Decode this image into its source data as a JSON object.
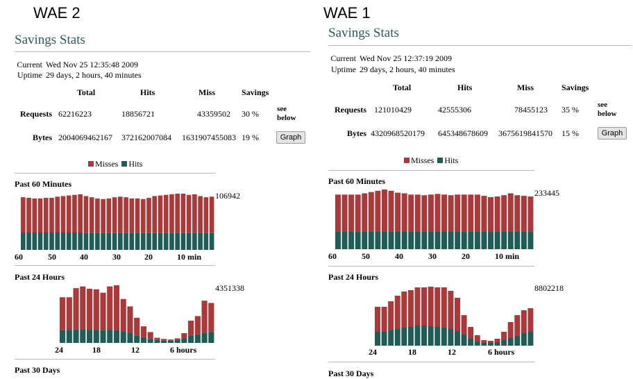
{
  "colors": {
    "misses": "#a83a3c",
    "hits": "#1e5c55",
    "title": "#2a5a5a"
  },
  "columns": [
    {
      "label": "WAE 2",
      "title": "Savings Stats",
      "current_label": "Current",
      "current_value": "Wed Nov 25 12:35:48 2009",
      "uptime_label": "Uptime",
      "uptime_value": "29 days, 2 hours, 40 minutes",
      "headers": [
        "Total",
        "Hits",
        "Miss",
        "Savings"
      ],
      "requests": {
        "label": "Requests",
        "total": "62216223",
        "hits": "18856721",
        "miss": "43359502",
        "savings": "30 %"
      },
      "bytes": {
        "label": "Bytes",
        "total": "2004069462167",
        "hits": "372162007084",
        "miss": "1631907455083",
        "savings": "19 %"
      },
      "see_below_1": "see",
      "see_below_2": "below",
      "graph_button": "Graph",
      "legend_misses": "Misses",
      "legend_hits": "Hits",
      "minutes": {
        "title": "Past 60 Minutes",
        "max_label": "106942",
        "ticks": [
          "60",
          "50",
          "40",
          "30",
          "20",
          "10 min"
        ],
        "misses": [
          59,
          58,
          57,
          57,
          58,
          58,
          60,
          61,
          62,
          63,
          64,
          62,
          60,
          58,
          57,
          58,
          60,
          61,
          60,
          58,
          58,
          57,
          59,
          62,
          63,
          64,
          65,
          66,
          66,
          64,
          65,
          62,
          60,
          61
        ],
        "hits": [
          29,
          29,
          29,
          29,
          29,
          29,
          29,
          29,
          29,
          29,
          29,
          28,
          28,
          28,
          28,
          28,
          28,
          28,
          28,
          28,
          28,
          28,
          28,
          28,
          28,
          28,
          28,
          28,
          28,
          28,
          28,
          28,
          28,
          28
        ]
      },
      "hours": {
        "title": "Past 24 Hours",
        "max_label": "4351338",
        "ticks": [
          "24",
          "18",
          "12",
          "6 hours"
        ],
        "misses": [
          58,
          57,
          72,
          75,
          72,
          71,
          66,
          76,
          79,
          57,
          47,
          31,
          19,
          12,
          4,
          3,
          2,
          3,
          9,
          26,
          32,
          56,
          51
        ],
        "hits": [
          22,
          23,
          24,
          24,
          23,
          23,
          22,
          23,
          22,
          20,
          17,
          13,
          10,
          7,
          5,
          4,
          4,
          5,
          8,
          13,
          15,
          18,
          19
        ]
      },
      "days": {
        "title": "Past 30 Days"
      }
    },
    {
      "label": "WAE 1",
      "title": "Savings Stats",
      "current_label": "Current",
      "current_value": "Wed Nov 25 12:37:19 2009",
      "uptime_label": "Uptime",
      "uptime_value": "29 days, 2 hours, 40 minutes",
      "headers": [
        "Total",
        "Hits",
        "Miss",
        "Savings"
      ],
      "requests": {
        "label": "Requests",
        "total": "121010429",
        "hits": "42555306",
        "miss": "78455123",
        "savings": "35 %"
      },
      "bytes": {
        "label": "Bytes",
        "total": "4320968520179",
        "hits": "645348678609",
        "miss": "3675619841570",
        "savings": "15 %"
      },
      "see_below_1": "see",
      "see_below_2": "below",
      "graph_button": "Graph",
      "legend_misses": "Misses",
      "legend_hits": "Hits",
      "minutes": {
        "title": "Past 60 Minutes",
        "max_label": "233445",
        "ticks": [
          "60",
          "50",
          "40",
          "30",
          "20",
          "10 min"
        ],
        "misses": [
          58,
          58,
          58,
          58,
          60,
          62,
          64,
          66,
          64,
          61,
          60,
          58,
          58,
          57,
          58,
          59,
          58,
          57,
          58,
          58,
          58,
          58,
          56,
          54,
          55,
          57,
          60,
          57,
          56,
          55
        ],
        "hits": [
          28,
          28,
          28,
          28,
          28,
          28,
          28,
          28,
          28,
          28,
          28,
          28,
          28,
          28,
          28,
          28,
          28,
          28,
          28,
          28,
          28,
          28,
          28,
          28,
          28,
          28,
          28,
          28,
          28,
          28
        ]
      },
      "hours": {
        "title": "Past 24 Hours",
        "max_label": "8802218",
        "ticks": [
          "24",
          "18",
          "12",
          "6 hours"
        ],
        "misses": [
          36,
          36,
          42,
          48,
          52,
          53,
          55,
          55,
          57,
          57,
          58,
          55,
          48,
          28,
          17,
          9,
          4,
          3,
          5,
          12,
          23,
          30,
          33,
          34
        ],
        "hits": [
          20,
          20,
          22,
          24,
          26,
          27,
          29,
          29,
          28,
          27,
          26,
          24,
          21,
          16,
          10,
          6,
          4,
          4,
          5,
          8,
          11,
          14,
          18,
          20
        ]
      },
      "days": {
        "title": "Past 30 Days"
      }
    }
  ]
}
